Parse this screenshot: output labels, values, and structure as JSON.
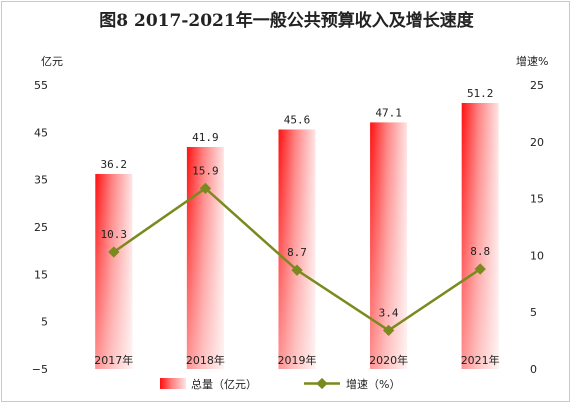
{
  "chart_data": {
    "type": "bar",
    "title": "图8 2017-2021年一般公共预算收入及增长速度",
    "categories": [
      "2017年",
      "2018年",
      "2019年",
      "2020年",
      "2021年"
    ],
    "series": [
      {
        "name": "总量（亿元）",
        "type": "bar",
        "axis": "left",
        "values": [
          36.2,
          41.9,
          45.6,
          47.1,
          51.2
        ],
        "labels": [
          "36.2",
          "41.9",
          "45.6",
          "47.1",
          "51.2"
        ]
      },
      {
        "name": "增速（%）",
        "type": "line",
        "axis": "right",
        "values": [
          10.3,
          15.9,
          8.7,
          3.4,
          8.8
        ],
        "labels": [
          "10.3",
          "15.9",
          "8.7",
          "3.4",
          "8.8"
        ]
      }
    ],
    "y_left": {
      "label": "亿元",
      "ylim": [
        -5,
        55
      ],
      "ticks": [
        55,
        45,
        35,
        25,
        15,
        5,
        -5
      ],
      "tick_labels": [
        "55",
        "45",
        "35",
        "25",
        "15",
        "5",
        "−5"
      ]
    },
    "y_right": {
      "label": "增速%",
      "ylim": [
        0,
        25
      ],
      "ticks": [
        25,
        20,
        15,
        10,
        5,
        0
      ],
      "tick_labels": [
        "25",
        "20",
        "15",
        "10",
        "5",
        "0"
      ]
    },
    "grid": false,
    "legend_position": "bottom",
    "colors": {
      "bar_edge": "#ff1010",
      "bar_mid": "#ff8080",
      "bar_light": "#ffe0e0",
      "line": "#7b8a1e",
      "marker": "#7b8a1e"
    }
  }
}
